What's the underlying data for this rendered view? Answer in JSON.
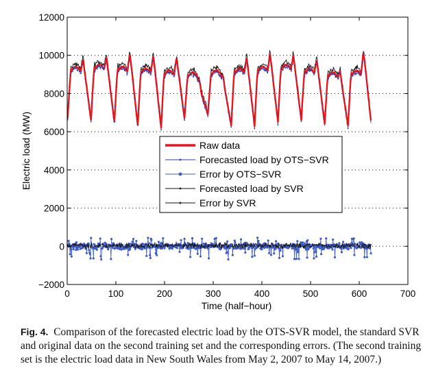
{
  "chart_data": {
    "type": "line",
    "title": "",
    "xlabel": "Time (half−hour)",
    "ylabel": "Electric load (MW)",
    "xlim": [
      0,
      700
    ],
    "ylim": [
      -2000,
      12000
    ],
    "xticks": [
      0,
      100,
      200,
      300,
      400,
      500,
      600,
      700
    ],
    "yticks": [
      -2000,
      0,
      2000,
      4000,
      6000,
      8000,
      10000,
      12000
    ],
    "xtick_labels": [
      "0",
      "100",
      "200",
      "300",
      "400",
      "500",
      "600",
      "700"
    ],
    "ytick_labels": [
      "−2000",
      "0",
      "2000",
      "4000",
      "6000",
      "8000",
      "10000",
      "12000"
    ],
    "grid": "dotted-horizontal",
    "legend_position": "center",
    "n_points": 624,
    "day_period": 48,
    "series": [
      {
        "name": "Raw data",
        "color": "#e8151b",
        "kind": "load",
        "daily_min": [
          6700,
          6600,
          6500,
          6300,
          6200,
          6700,
          6900,
          6300,
          6300,
          6500,
          6600,
          6400,
          6300
        ],
        "morning_peak": [
          9500,
          9600,
          9500,
          9400,
          9300,
          9200,
          9300,
          9400,
          9500,
          9600,
          9400,
          9200,
          9300
        ],
        "evening_peak": [
          9800,
          9900,
          10100,
          10000,
          9900,
          8600,
          8900,
          9900,
          10100,
          10000,
          9800,
          9200,
          10200
        ]
      },
      {
        "name": "Forecasted load by OTS−SVR",
        "color": "#2a3bb0",
        "kind": "forecast",
        "marker": "dot"
      },
      {
        "name": "Error by OTS−SVR",
        "color": "#3f5cc4",
        "kind": "error",
        "marker": "star",
        "range": [
          -700,
          450
        ]
      },
      {
        "name": "Forecasted load by SVR",
        "color": "#111111",
        "kind": "forecast",
        "marker": "dot"
      },
      {
        "name": "Error by SVR",
        "color": "#111111",
        "kind": "error",
        "marker": "dot",
        "range": [
          -350,
          350
        ]
      }
    ]
  },
  "caption": {
    "label": "Fig. 4.",
    "text": "Comparison of the forecasted electric load by the OTS-SVR model, the standard SVR and original data on the second training set and the corresponding errors. (The second training set is the electric load data in New South Wales from May 2, 2007 to May 14, 2007.)"
  }
}
